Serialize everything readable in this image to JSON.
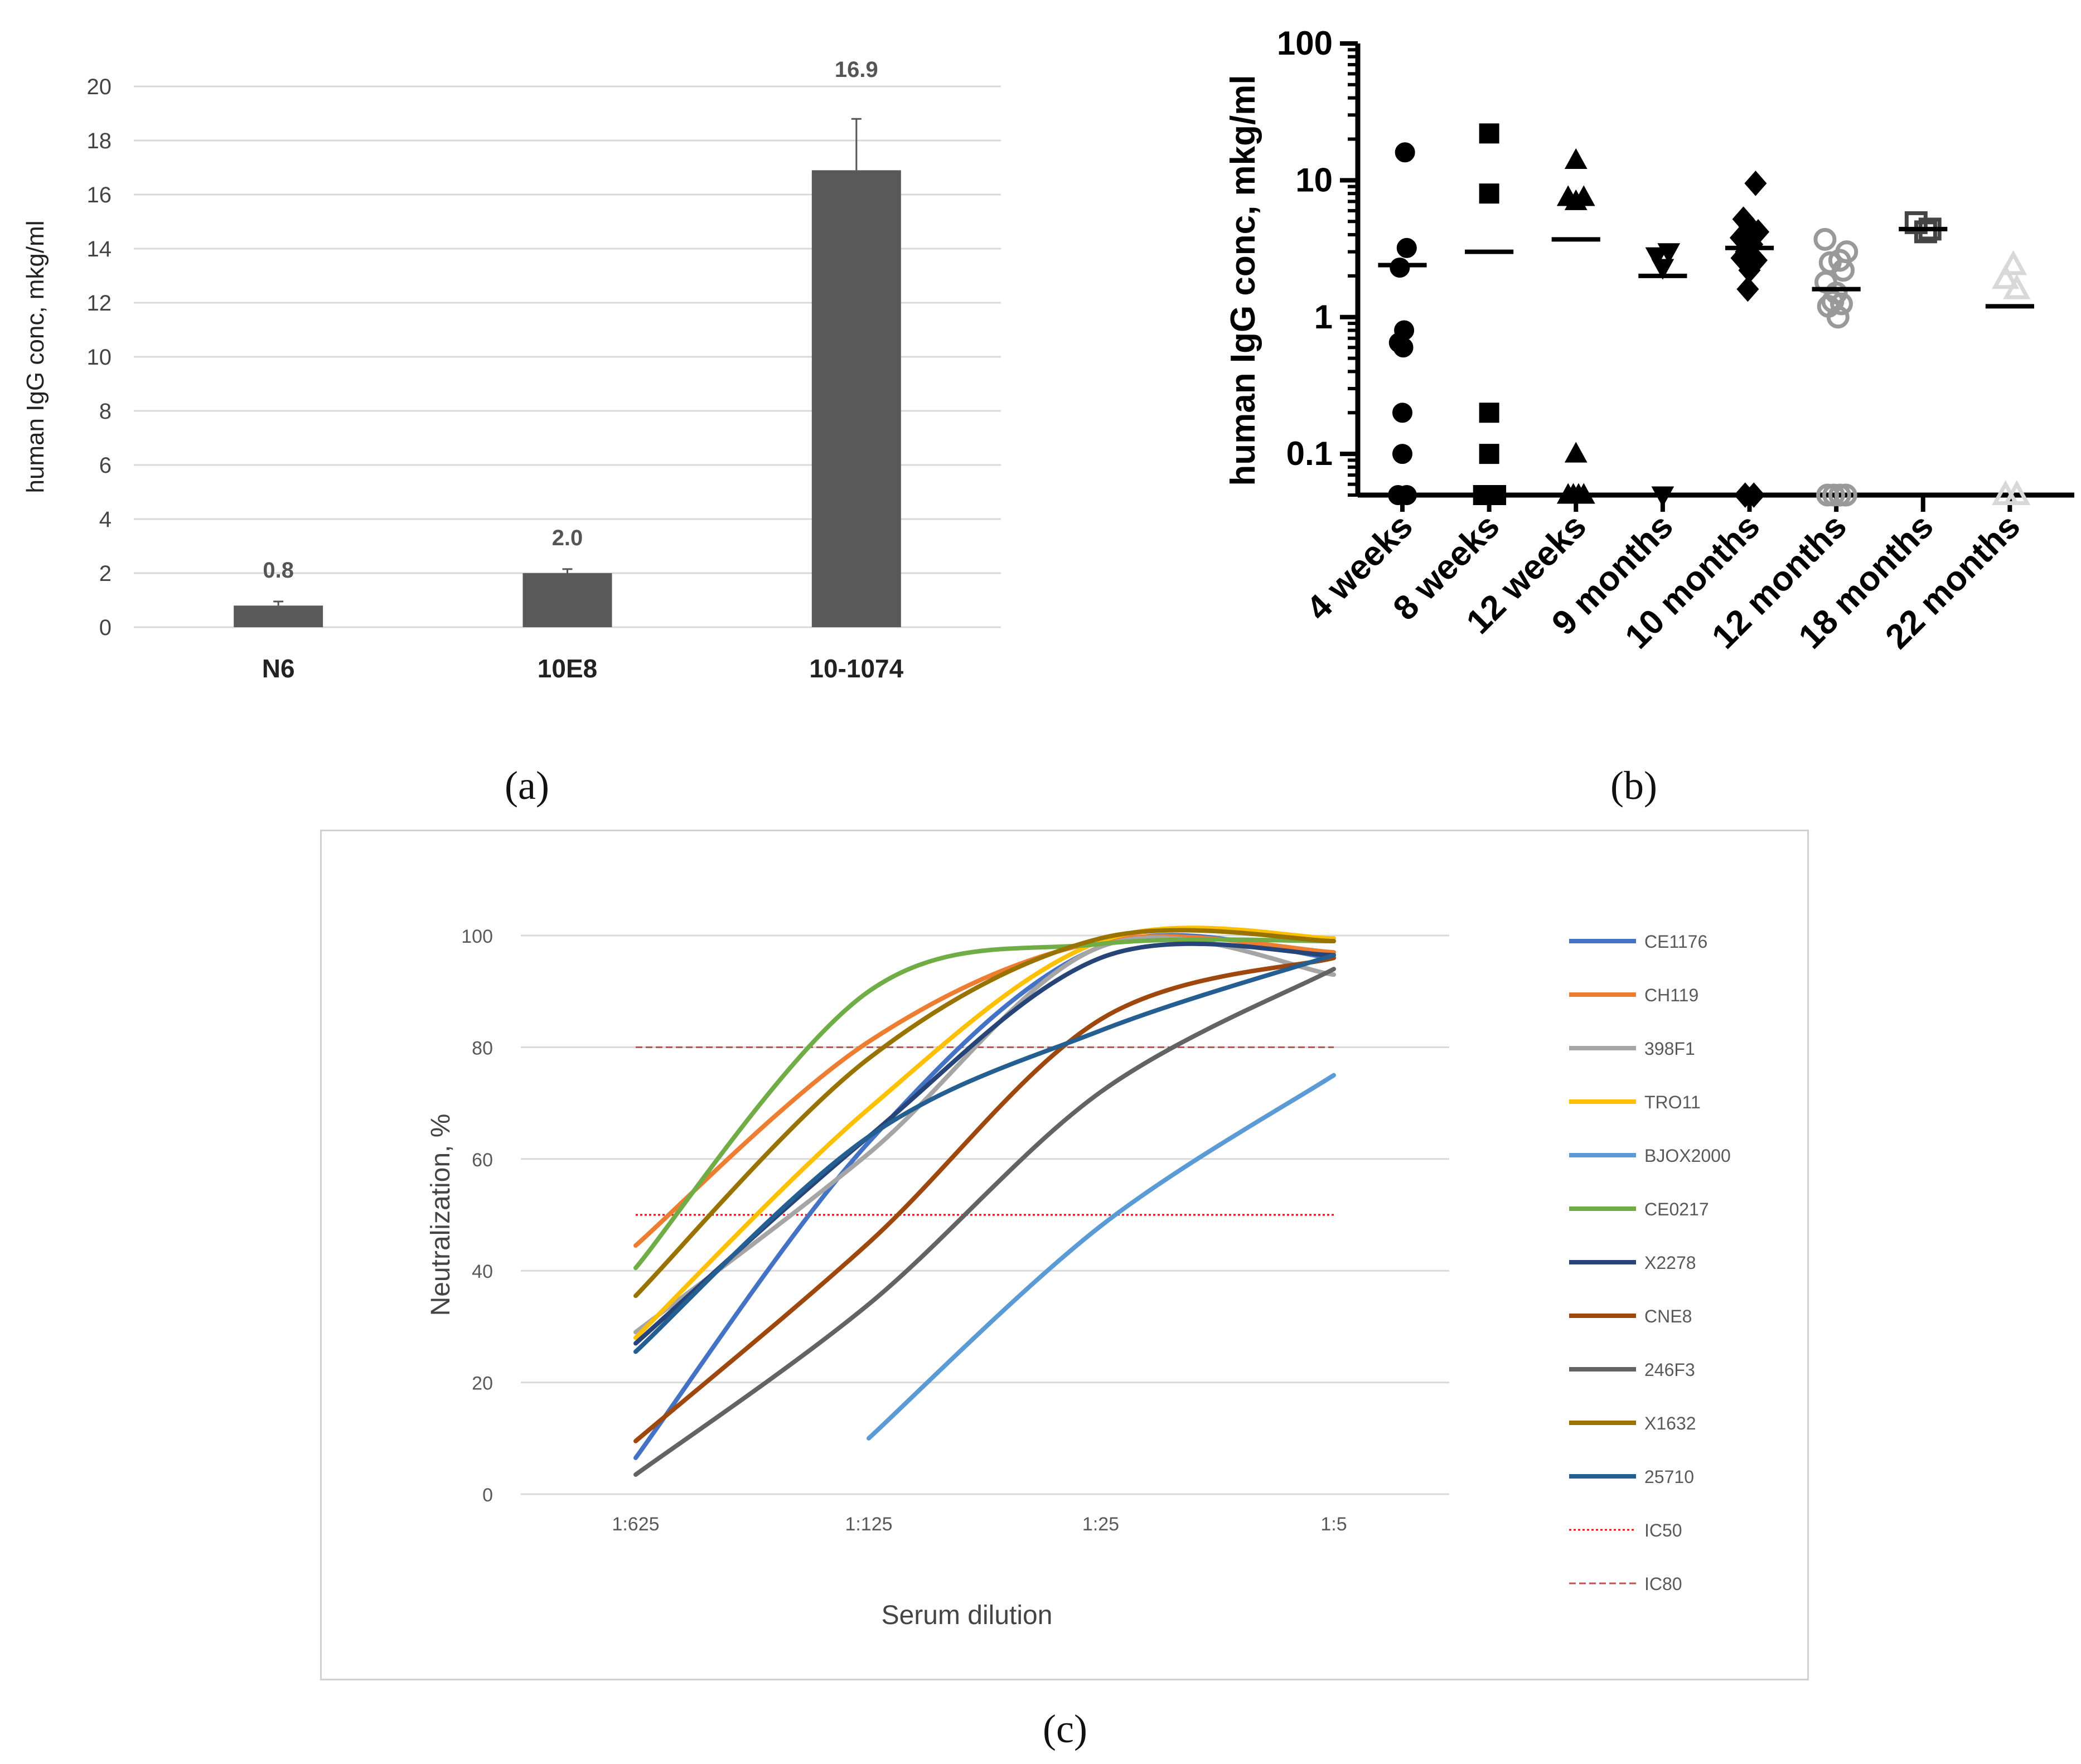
{
  "chart_data": [
    {
      "panel": "(a)",
      "type": "bar",
      "categories": [
        "N6",
        "10E8",
        "10-1074"
      ],
      "values": [
        0.8,
        2.0,
        16.9
      ],
      "errors": [
        0.15,
        0.15,
        1.9
      ],
      "value_labels": [
        "0.8",
        "2.0",
        "16.9"
      ],
      "ylabel": "human IgG conc, mkg/ml",
      "ylim": [
        0,
        20
      ],
      "yticks": [
        "0",
        "2",
        "4",
        "6",
        "8",
        "10",
        "12",
        "14",
        "16",
        "18",
        "20"
      ],
      "grid": true,
      "bar_color": "#595959"
    },
    {
      "panel": "(b)",
      "type": "scatter",
      "scale": "log",
      "categories": [
        "4 weeks",
        "8 weeks",
        "12 weeks",
        "9 months",
        "10 months",
        "12 months",
        "18 months",
        "22 months"
      ],
      "ylabel": "human IgG conc, mkg/ml",
      "ylim": [
        0.05,
        100
      ],
      "yticks": [
        "0.1",
        "1",
        "10",
        "100"
      ],
      "groups": [
        {
          "marker": "circle",
          "filled": true,
          "color": "#000000",
          "median": 2.4,
          "points": [
            [
              0.03,
              16
            ],
            [
              0.05,
              3.2
            ],
            [
              -0.03,
              2.3
            ],
            [
              0.02,
              0.8
            ],
            [
              -0.04,
              0.65
            ],
            [
              0.01,
              0.6
            ],
            [
              0.0,
              0.2
            ],
            [
              0.0,
              0.1
            ],
            [
              -0.05,
              0.05
            ],
            [
              0.05,
              0.05
            ]
          ]
        },
        {
          "marker": "square",
          "filled": true,
          "color": "#000000",
          "median": 3.0,
          "points": [
            [
              0.0,
              22
            ],
            [
              0.0,
              8
            ],
            [
              0.0,
              0.2
            ],
            [
              0.0,
              0.1
            ],
            [
              -0.07,
              0.05
            ],
            [
              -0.02,
              0.05
            ],
            [
              0.03,
              0.05
            ],
            [
              0.08,
              0.05
            ]
          ]
        },
        {
          "marker": "triangle-up",
          "filled": true,
          "color": "#000000",
          "median": 3.7,
          "points": [
            [
              0.0,
              14
            ],
            [
              -0.09,
              7.5
            ],
            [
              0.0,
              7
            ],
            [
              0.09,
              7.5
            ],
            [
              0.0,
              0.1
            ],
            [
              -0.09,
              0.05
            ],
            [
              -0.03,
              0.05
            ],
            [
              0.03,
              0.05
            ],
            [
              0.09,
              0.05
            ]
          ]
        },
        {
          "marker": "triangle-down",
          "filled": true,
          "color": "#000000",
          "median": 2.0,
          "points": [
            [
              -0.07,
              2.8
            ],
            [
              0.07,
              3.0
            ],
            [
              0.0,
              2.3
            ],
            [
              0.0,
              0.05
            ]
          ]
        },
        {
          "marker": "diamond",
          "filled": true,
          "color": "#000000",
          "median": 3.2,
          "points": [
            [
              0.07,
              9.5
            ],
            [
              -0.07,
              5.2
            ],
            [
              0.0,
              4.6
            ],
            [
              0.1,
              4.2
            ],
            [
              -0.1,
              3.8
            ],
            [
              0.03,
              3.4
            ],
            [
              -0.04,
              3.0
            ],
            [
              0.08,
              2.6
            ],
            [
              -0.09,
              2.7
            ],
            [
              0.0,
              2.2
            ],
            [
              -0.02,
              1.6
            ],
            [
              -0.05,
              0.05
            ],
            [
              0.05,
              0.05
            ]
          ]
        },
        {
          "marker": "circle",
          "filled": false,
          "color": "#999999",
          "median": 1.6,
          "points": [
            [
              -0.13,
              3.7
            ],
            [
              0.12,
              3.0
            ],
            [
              0.04,
              2.6
            ],
            [
              -0.07,
              2.5
            ],
            [
              0.08,
              2.2
            ],
            [
              -0.12,
              1.8
            ],
            [
              0.0,
              1.5
            ],
            [
              -0.04,
              1.3
            ],
            [
              0.06,
              1.25
            ],
            [
              -0.09,
              1.2
            ],
            [
              0.02,
              1.0
            ],
            [
              -0.1,
              0.05
            ],
            [
              -0.03,
              0.05
            ],
            [
              0.04,
              0.05
            ],
            [
              0.11,
              0.05
            ]
          ]
        },
        {
          "marker": "square",
          "filled": false,
          "color": "#444444",
          "median": 4.4,
          "points": [
            [
              -0.08,
              4.9
            ],
            [
              0.03,
              4.2
            ],
            [
              0.08,
              4.4
            ]
          ]
        },
        {
          "marker": "triangle-up",
          "filled": false,
          "color": "#d8d8d8",
          "median": 1.2,
          "points": [
            [
              0.04,
              2.4
            ],
            [
              -0.05,
              1.9
            ],
            [
              0.08,
              1.6
            ],
            [
              -0.05,
              0.05
            ],
            [
              0.08,
              0.05
            ]
          ]
        }
      ]
    },
    {
      "panel": "(c)",
      "type": "line",
      "categories": [
        "1:625",
        "1:125",
        "1:25",
        "1:5"
      ],
      "xlabel": "Serum dilution",
      "ylabel": "Neutralization, %",
      "ylim": [
        0,
        100
      ],
      "yticks": [
        "0",
        "20",
        "40",
        "60",
        "80",
        "100"
      ],
      "grid": true,
      "legend_position": "right",
      "series": [
        {
          "name": "CE1176",
          "color": "#4472c4",
          "values": [
            6.5,
            63,
            98,
            96
          ]
        },
        {
          "name": "CH119",
          "color": "#ed7d31",
          "values": [
            44.5,
            81,
            99,
            97
          ]
        },
        {
          "name": "398F1",
          "color": "#a5a5a5",
          "values": [
            29,
            61,
            98,
            93
          ]
        },
        {
          "name": "TRO11",
          "color": "#ffc000",
          "values": [
            28,
            69,
            99,
            99.5
          ]
        },
        {
          "name": "BJOX2000",
          "color": "#5b9bd5",
          "values": [
            null,
            10,
            48,
            75
          ]
        },
        {
          "name": "CE0217",
          "color": "#70ad47",
          "values": [
            40.5,
            90,
            98.5,
            99
          ]
        },
        {
          "name": "X2278",
          "color": "#264478",
          "values": [
            27,
            64,
            96,
            96.5
          ]
        },
        {
          "name": "CNE8",
          "color": "#9e480e",
          "values": [
            9.5,
            45,
            85,
            96
          ]
        },
        {
          "name": "246F3",
          "color": "#636363",
          "values": [
            3.5,
            34,
            72,
            94
          ]
        },
        {
          "name": "X1632",
          "color": "#997300",
          "values": [
            35.5,
            78,
            99.5,
            99
          ]
        },
        {
          "name": "25710",
          "color": "#255e91",
          "values": [
            25.5,
            64,
            83,
            96.5
          ]
        }
      ],
      "reference_lines": [
        {
          "name": "IC50",
          "value": 50,
          "color": "#ff0000",
          "dash": "dotted"
        },
        {
          "name": "IC80",
          "value": 80,
          "color": "#c0504d",
          "dash": "dashed"
        }
      ]
    }
  ],
  "captions": {
    "a": "(a)",
    "b": "(b)",
    "c": "(c)"
  }
}
